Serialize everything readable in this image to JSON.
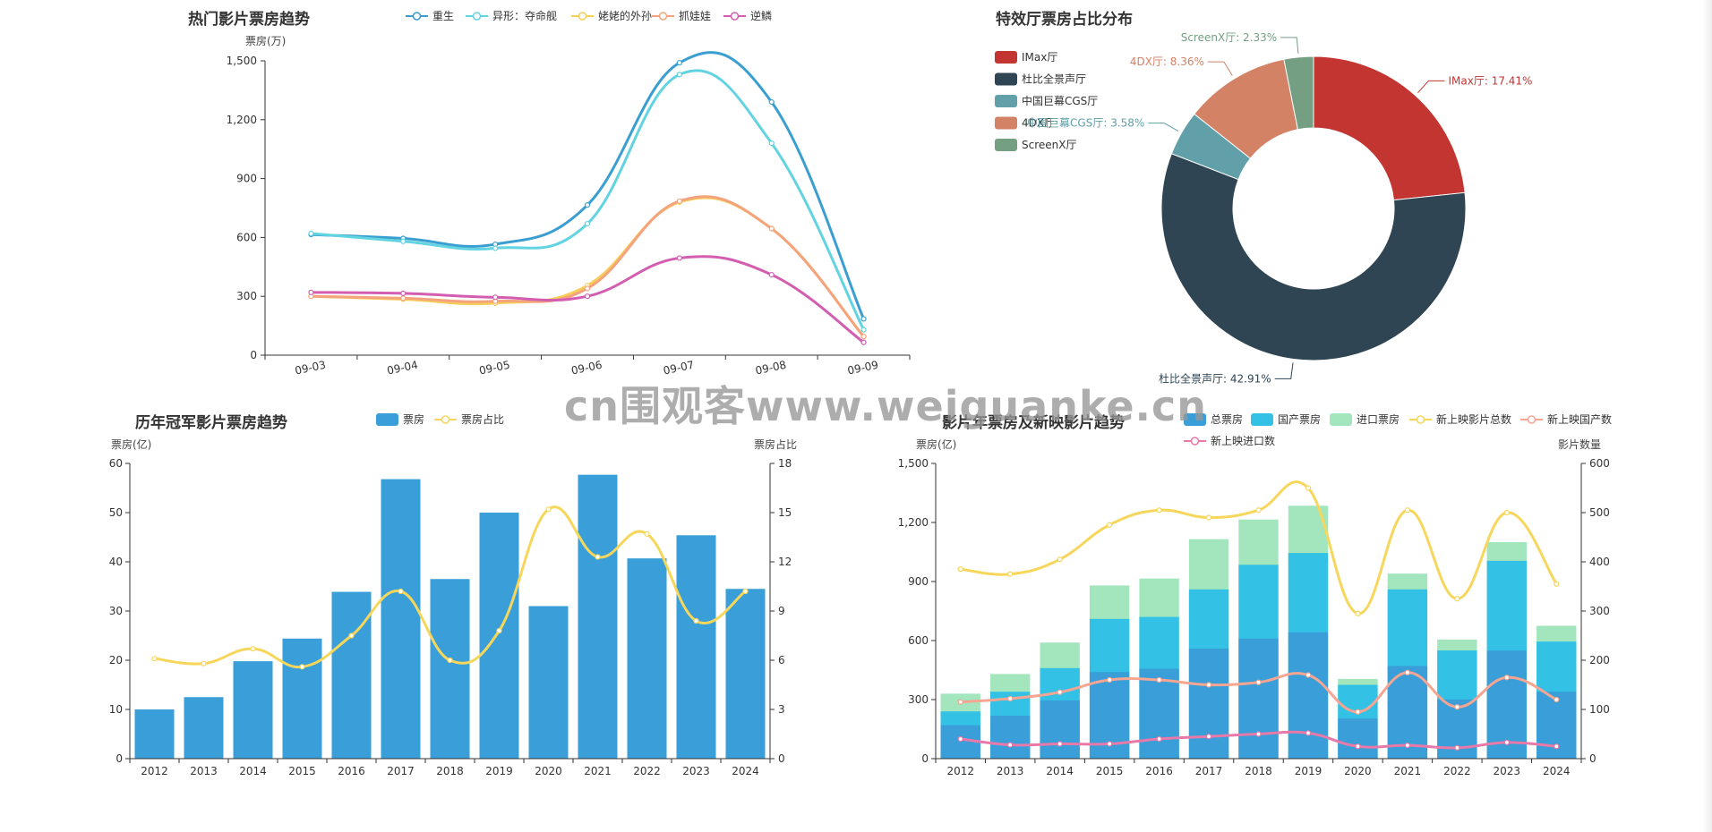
{
  "colors": {
    "axis": "#333333",
    "grid": "#e6e6e6",
    "movies": [
      "#3a9fd0",
      "#62d3e0",
      "#f5cf5a",
      "#f5a37c",
      "#d35db0"
    ],
    "pie": [
      "#c23531",
      "#2f4554",
      "#61a0a8",
      "#d48265",
      "#749f83"
    ],
    "bar_blue": "#3a9fd8",
    "line_yellow": "#f6d65b",
    "total": "#3a9fd8",
    "domestic": "#33c2e6",
    "imported": "#a3e6bd",
    "new_total": "#f6d65b",
    "new_domestic": "#f5a591",
    "new_imported": "#e879a8"
  },
  "watermark": "cn围观客www.weiguanke.cn",
  "chart_data": [
    {
      "type": "line",
      "title": "热门影片票房趋势",
      "ylabel": "票房(万)",
      "ylim": [
        0,
        1500
      ],
      "yticks": [
        "0",
        "300",
        "600",
        "900",
        "1,200",
        "1,500"
      ],
      "categories": [
        "09-03",
        "09-04",
        "09-05",
        "09-06",
        "09-07",
        "09-08",
        "09-09"
      ],
      "legend_position": "top",
      "series": [
        {
          "name": "重生",
          "values": [
            615,
            595,
            565,
            765,
            1490,
            1290,
            185
          ]
        },
        {
          "name": "异形：夺命舰",
          "values": [
            620,
            580,
            545,
            670,
            1430,
            1080,
            130
          ]
        },
        {
          "name": "姥姥的外孙",
          "values": [
            300,
            285,
            265,
            355,
            780,
            645,
            95
          ]
        },
        {
          "name": "抓娃娃",
          "values": [
            300,
            290,
            275,
            340,
            785,
            645,
            95
          ]
        },
        {
          "name": "逆鳞",
          "values": [
            320,
            315,
            295,
            300,
            495,
            410,
            65
          ]
        }
      ]
    },
    {
      "type": "pie",
      "title": "特效厅票房占比分布",
      "legend_position": "left",
      "slices": [
        {
          "name": "IMax厅",
          "value": 17.41,
          "label": "IMax厅: 17.41%"
        },
        {
          "name": "杜比全景声厅",
          "value": 42.91,
          "label": "杜比全景声厅: 42.91%"
        },
        {
          "name": "中国巨幕CGS厅",
          "value": 3.58,
          "label": "中国巨幕CGS厅: 3.58%"
        },
        {
          "name": "4DX厅",
          "value": 8.36,
          "label": "4DX厅: 8.36%"
        },
        {
          "name": "ScreenX厅",
          "value": 2.33,
          "label": "ScreenX厅: 2.33%"
        }
      ]
    },
    {
      "type": "bar",
      "title": "历年冠军影片票房趋势",
      "ylabel_left": "票房(亿)",
      "ylabel_right": "票房占比",
      "ylim_left": [
        0,
        60
      ],
      "ylim_right": [
        0,
        18
      ],
      "yticks_left": [
        "0",
        "10",
        "20",
        "30",
        "40",
        "50",
        "60"
      ],
      "yticks_right": [
        "0",
        "3",
        "6",
        "9",
        "12",
        "15",
        "18"
      ],
      "categories": [
        "2012",
        "2013",
        "2014",
        "2015",
        "2016",
        "2017",
        "2018",
        "2019",
        "2020",
        "2021",
        "2022",
        "2023",
        "2024"
      ],
      "legend_position": "top",
      "series": [
        {
          "name": "票房",
          "kind": "bar",
          "axis": "left",
          "values": [
            10,
            12.5,
            19.8,
            24.4,
            33.9,
            56.8,
            36.5,
            50,
            31,
            57.7,
            40.7,
            45.4,
            34.5
          ]
        },
        {
          "name": "票房占比",
          "kind": "line",
          "axis": "right",
          "values": [
            6.1,
            5.8,
            6.7,
            5.6,
            7.5,
            10.2,
            6,
            7.8,
            15.2,
            12.3,
            13.7,
            8.4,
            10.2
          ]
        }
      ]
    },
    {
      "type": "bar",
      "title": "影片年票房及新映影片趋势",
      "ylabel_left": "票房(亿)",
      "ylabel_right": "影片数量",
      "ylim_left": [
        0,
        1500
      ],
      "ylim_right": [
        0,
        600
      ],
      "yticks_left": [
        "0",
        "300",
        "600",
        "900",
        "1,200",
        "1,500"
      ],
      "yticks_right": [
        "0",
        "100",
        "200",
        "300",
        "400",
        "500",
        "600"
      ],
      "categories": [
        "2012",
        "2013",
        "2014",
        "2015",
        "2016",
        "2017",
        "2018",
        "2019",
        "2020",
        "2021",
        "2022",
        "2023",
        "2024"
      ],
      "legend_position": "top",
      "series": [
        {
          "name": "总票房",
          "kind": "bar",
          "axis": "left",
          "values": [
            170,
            218,
            296,
            440,
            457,
            559,
            610,
            642,
            204,
            471,
            301,
            549,
            340
          ]
        },
        {
          "name": "国产票房",
          "kind": "bar",
          "axis": "left",
          "values": [
            240,
            340,
            460,
            710,
            720,
            860,
            985,
            1045,
            375,
            860,
            550,
            1005,
            595
          ]
        },
        {
          "name": "进口票房",
          "kind": "bar",
          "axis": "left",
          "values": [
            330,
            430,
            590,
            880,
            915,
            1115,
            1215,
            1285,
            405,
            940,
            605,
            1100,
            675
          ]
        },
        {
          "name": "新上映影片总数",
          "kind": "line",
          "axis": "right",
          "values": [
            385,
            375,
            405,
            475,
            505,
            490,
            505,
            550,
            295,
            505,
            325,
            500,
            355
          ]
        },
        {
          "name": "新上映国产数",
          "kind": "line",
          "axis": "right",
          "values": [
            115,
            122,
            135,
            160,
            160,
            150,
            155,
            170,
            95,
            175,
            105,
            165,
            120
          ]
        },
        {
          "name": "新上映进口数",
          "kind": "line",
          "axis": "right",
          "values": [
            40,
            28,
            30,
            30,
            40,
            45,
            50,
            52,
            25,
            27,
            22,
            33,
            25
          ]
        }
      ]
    }
  ]
}
